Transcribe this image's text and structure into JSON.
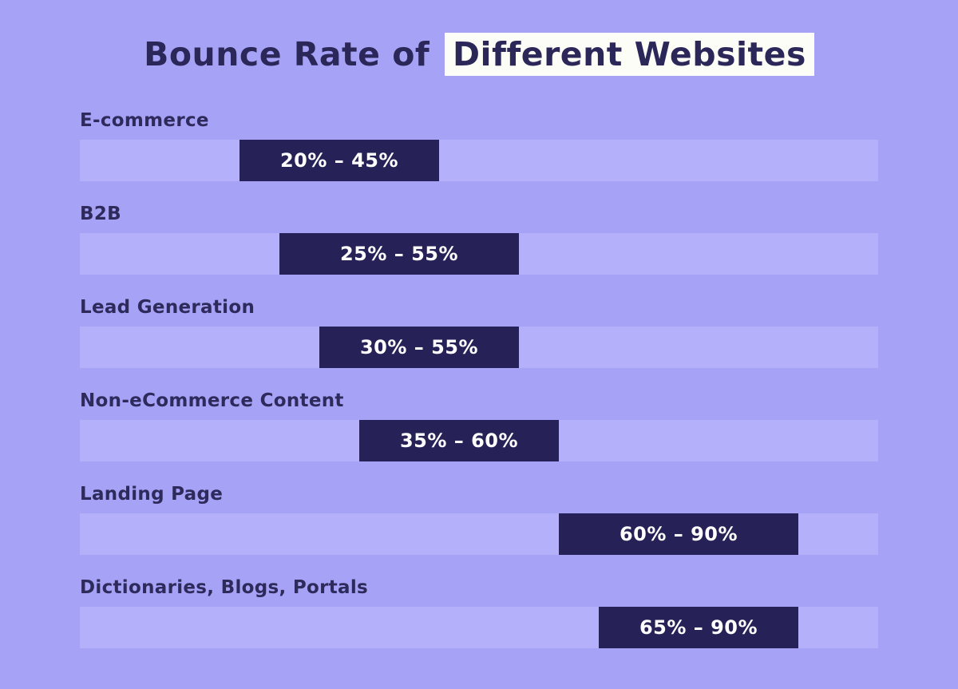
{
  "page": {
    "background_color": "#a6a3f7"
  },
  "title": {
    "prefix": "Bounce Rate of",
    "highlight": "Different Websites",
    "text_color": "#2b2759",
    "highlight_background": "#fdfdf7"
  },
  "chart_data": {
    "type": "bar",
    "subtype": "horizontal-range-bars",
    "title": "Bounce Rate of Different Websites",
    "xlabel": "",
    "ylabel": "",
    "xlim": [
      0,
      100
    ],
    "grid": false,
    "legend": false,
    "track_color": "#b4b1fa",
    "bar_color": "#262257",
    "value_text_color": "#ffffff",
    "category_text_color": "#2e2a5c",
    "categories": [
      "E-commerce",
      "B2B",
      "Lead Generation",
      "Non-eCommerce Content",
      "Landing Page",
      "Dictionaries, Blogs, Portals"
    ],
    "series": [
      {
        "name": "E-commerce",
        "range_start": 20,
        "range_end": 45,
        "label": "20% – 45%"
      },
      {
        "name": "B2B",
        "range_start": 25,
        "range_end": 55,
        "label": "25% – 55%"
      },
      {
        "name": "Lead Generation",
        "range_start": 30,
        "range_end": 55,
        "label": "30% – 55%"
      },
      {
        "name": "Non-eCommerce Content",
        "range_start": 35,
        "range_end": 60,
        "label": "35% – 60%"
      },
      {
        "name": "Landing Page",
        "range_start": 60,
        "range_end": 90,
        "label": "60% – 90%"
      },
      {
        "name": "Dictionaries, Blogs, Portals",
        "range_start": 65,
        "range_end": 90,
        "label": "65% – 90%"
      }
    ]
  }
}
